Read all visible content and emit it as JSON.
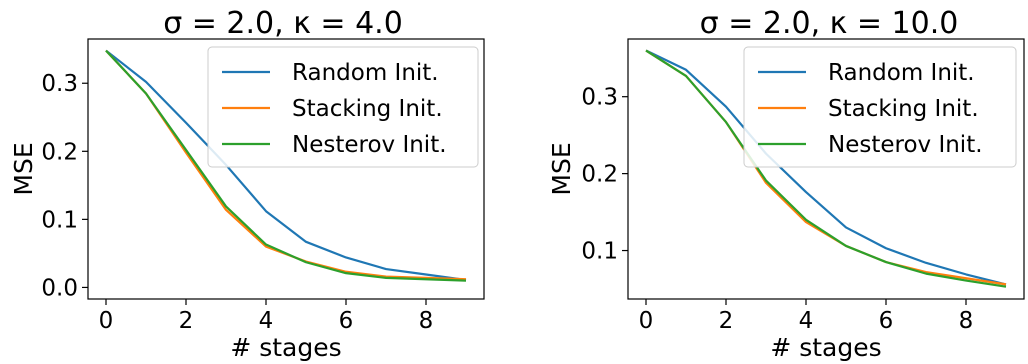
{
  "chart_data": [
    {
      "type": "line",
      "title": "σ = 2.0, κ = 4.0",
      "xlabel": "# stages",
      "ylabel": "MSE",
      "xlim": [
        -0.45,
        9.45
      ],
      "ylim": [
        -0.017,
        0.365
      ],
      "xticks": [
        0,
        2,
        4,
        6,
        8
      ],
      "yticks": [
        0.0,
        0.1,
        0.2,
        0.3
      ],
      "ytick_labels": [
        "0.0",
        "0.1",
        "0.2",
        "0.3"
      ],
      "legend_position": "upper right",
      "x": [
        0,
        1,
        2,
        3,
        4,
        5,
        6,
        7,
        8,
        9
      ],
      "series": [
        {
          "name": "Random Init.",
          "color": "#1f77b4",
          "values": [
            0.348,
            0.302,
            0.242,
            0.18,
            0.112,
            0.067,
            0.044,
            0.027,
            0.019,
            0.011
          ]
        },
        {
          "name": "Stacking Init.",
          "color": "#ff7f0e",
          "values": [
            0.348,
            0.285,
            0.198,
            0.114,
            0.06,
            0.038,
            0.023,
            0.016,
            0.014,
            0.012
          ]
        },
        {
          "name": "Nesterov Init.",
          "color": "#2ca02c",
          "values": [
            0.348,
            0.285,
            0.202,
            0.119,
            0.063,
            0.037,
            0.021,
            0.014,
            0.012,
            0.01
          ]
        }
      ]
    },
    {
      "type": "line",
      "title": "σ = 2.0, κ = 10.0",
      "xlabel": "# stages",
      "ylabel": "MSE",
      "xlim": [
        -0.45,
        9.45
      ],
      "ylim": [
        0.037,
        0.375
      ],
      "xticks": [
        0,
        2,
        4,
        6,
        8
      ],
      "yticks": [
        0.1,
        0.2,
        0.3
      ],
      "ytick_labels": [
        "0.1",
        "0.2",
        "0.3"
      ],
      "legend_position": "upper right",
      "x": [
        0,
        1,
        2,
        3,
        4,
        5,
        6,
        7,
        8,
        9
      ],
      "series": [
        {
          "name": "Random Init.",
          "color": "#1f77b4",
          "values": [
            0.36,
            0.335,
            0.287,
            0.226,
            0.176,
            0.13,
            0.103,
            0.084,
            0.069,
            0.056
          ]
        },
        {
          "name": "Stacking Init.",
          "color": "#ff7f0e",
          "values": [
            0.36,
            0.327,
            0.267,
            0.188,
            0.137,
            0.106,
            0.085,
            0.072,
            0.064,
            0.056
          ]
        },
        {
          "name": "Nesterov Init.",
          "color": "#2ca02c",
          "values": [
            0.36,
            0.327,
            0.267,
            0.191,
            0.14,
            0.106,
            0.085,
            0.07,
            0.061,
            0.053
          ]
        }
      ]
    }
  ]
}
